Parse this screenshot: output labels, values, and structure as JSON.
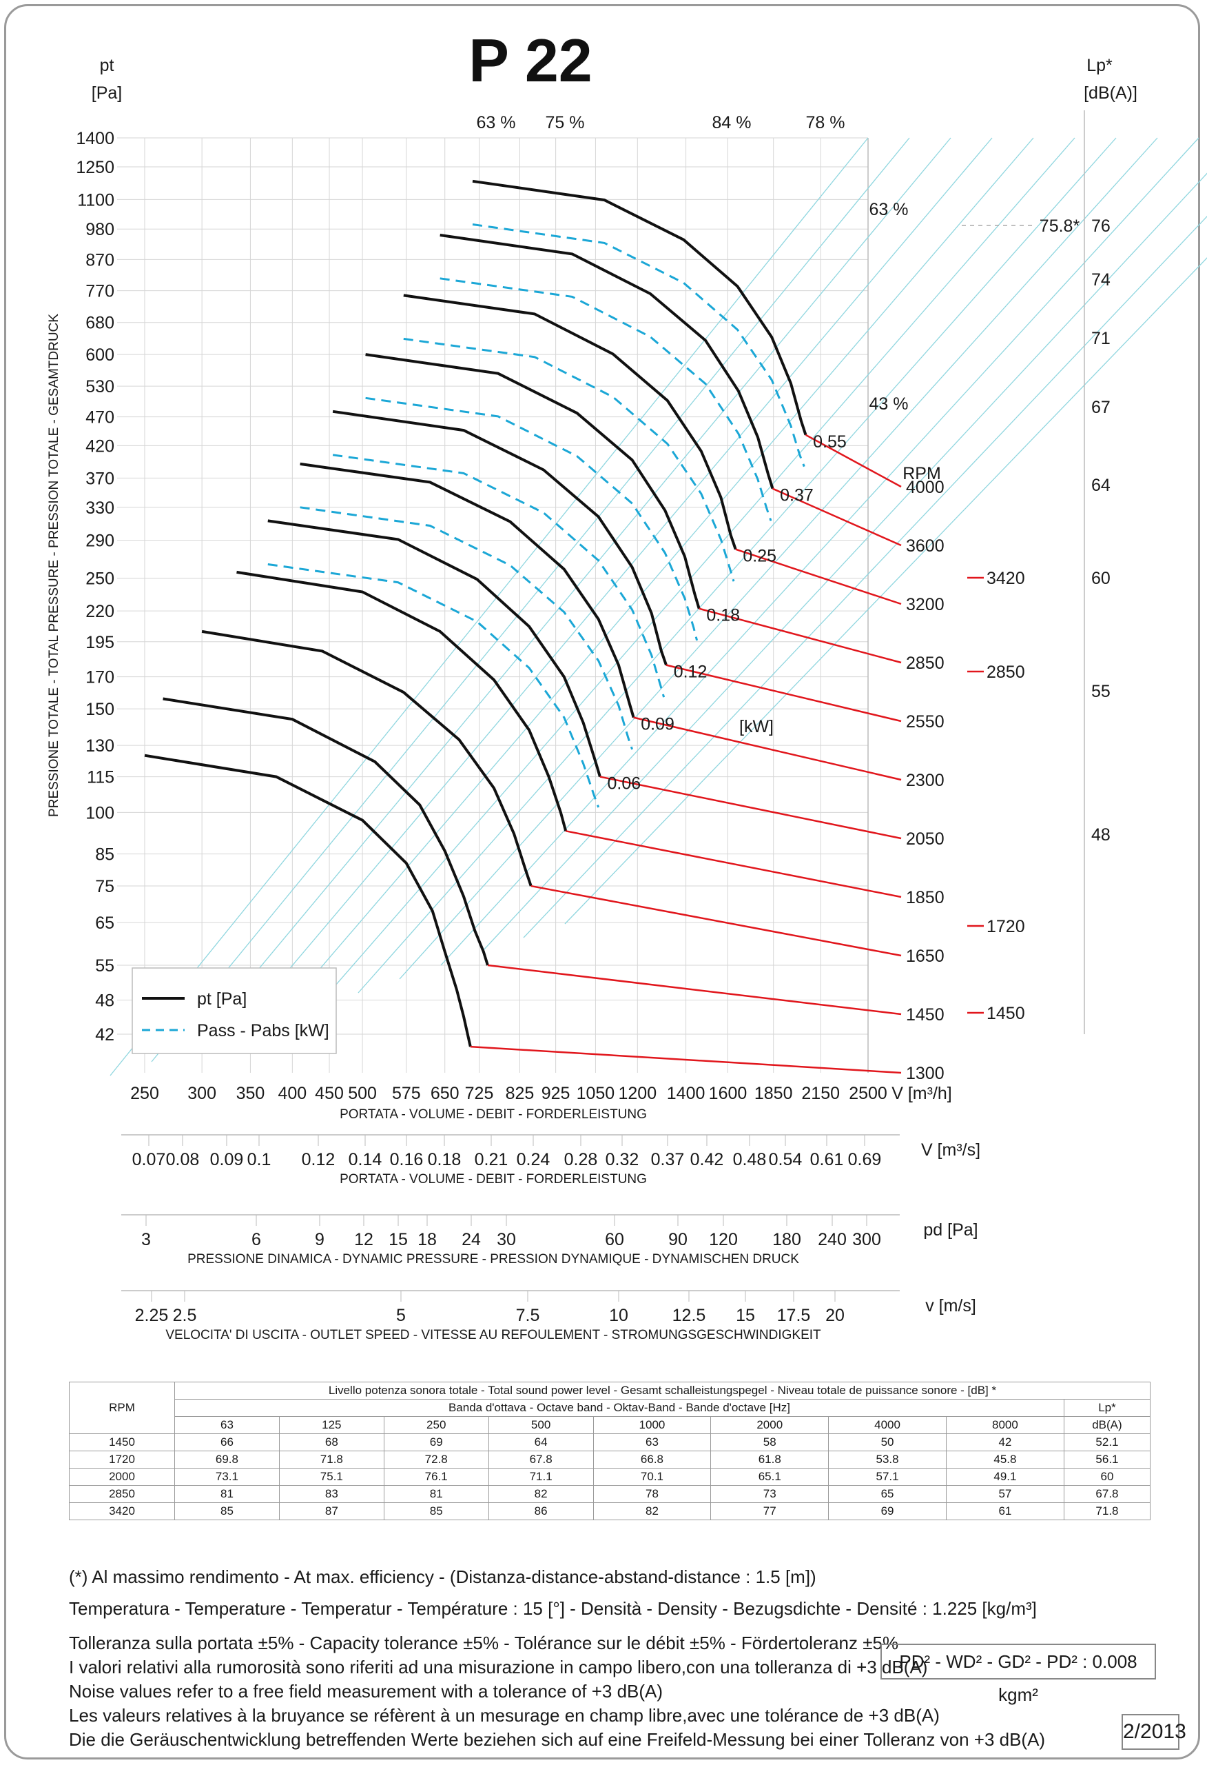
{
  "chart_data": {
    "type": "line",
    "title": "P 22",
    "y_axis": {
      "label": "pt\n[Pa]",
      "side_label": "PRESSIONE TOTALE - TOTAL PRESSURE - PRESSION TOTALE - GESAMTDRUCK",
      "ticks": [
        "1400",
        "1250",
        "1100",
        "980",
        "870",
        "770",
        "680",
        "600",
        "530",
        "470",
        "420",
        "370",
        "330",
        "290",
        "250",
        "220",
        "195",
        "170",
        "150",
        "130",
        "115",
        "100",
        "85",
        "75",
        "65",
        "55",
        "48",
        "42"
      ],
      "range": [
        42,
        1400
      ],
      "scale": "log"
    },
    "x_axis": {
      "label": "V [m³/h]",
      "caption": "PORTATA - VOLUME - DEBIT - FORDERLEISTUNG",
      "ticks": [
        "250",
        "300",
        "350",
        "400",
        "450",
        "500",
        "575",
        "650",
        "725",
        "825",
        "925",
        "1050",
        "1200",
        "1400",
        "1600",
        "1850",
        "2150",
        "2500"
      ],
      "range": [
        250,
        2500
      ],
      "scale": "log"
    },
    "sound_axis": {
      "label": "Lp*\n[dB(A)]",
      "ticks": [
        "76",
        "74",
        "71",
        "67",
        "64",
        "60",
        "55",
        "48"
      ],
      "marker": "75.8*"
    },
    "efficiency_labels": [
      "63 %",
      "75 %",
      "84 %",
      "78 %",
      "63 %",
      "43 %"
    ],
    "speed_header": "RPM",
    "power_unit": "[kW]",
    "legend": {
      "position": "bottom-left",
      "items": [
        "pt [Pa]",
        "Pass - Pabs [kW]"
      ]
    },
    "colors": {
      "pressure": "#111111",
      "power": "#1ba7d6",
      "rpm_line": "#e1161c",
      "grid": "#8fd6df"
    },
    "series": [
      {
        "rpm": "1300",
        "power": "",
        "pressure_points": [
          [
            250,
            125
          ],
          [
            380,
            115
          ],
          [
            500,
            97
          ],
          [
            575,
            82
          ],
          [
            625,
            68
          ],
          [
            650,
            58
          ],
          [
            675,
            50
          ],
          [
            690,
            45
          ],
          [
            705,
            40
          ]
        ],
        "power_points": []
      },
      {
        "rpm": "1450",
        "power": "",
        "pressure_points": [
          [
            265,
            156
          ],
          [
            400,
            144
          ],
          [
            520,
            122
          ],
          [
            600,
            103
          ],
          [
            650,
            86
          ],
          [
            690,
            72
          ],
          [
            715,
            63
          ],
          [
            735,
            58
          ],
          [
            745,
            55
          ]
        ],
        "power_points": []
      },
      {
        "rpm": "1650",
        "power": "",
        "pressure_points": [
          [
            300,
            203
          ],
          [
            440,
            188
          ],
          [
            570,
            160
          ],
          [
            680,
            133
          ],
          [
            760,
            110
          ],
          [
            810,
            92
          ],
          [
            840,
            80
          ],
          [
            855,
            75
          ]
        ],
        "power_points": []
      },
      {
        "rpm": "1850",
        "power": "",
        "pressure_points": [
          [
            335,
            256
          ],
          [
            500,
            237
          ],
          [
            640,
            203
          ],
          [
            760,
            168
          ],
          [
            850,
            138
          ],
          [
            905,
            115
          ],
          [
            940,
            100
          ],
          [
            955,
            93
          ]
        ],
        "power_points": []
      },
      {
        "rpm": "2050",
        "power": "0.06",
        "pressure_points": [
          [
            370,
            313
          ],
          [
            560,
            291
          ],
          [
            720,
            249
          ],
          [
            850,
            207
          ],
          [
            950,
            170
          ],
          [
            1010,
            142
          ],
          [
            1050,
            122
          ],
          [
            1065,
            115
          ]
        ],
        "power_points": [
          [
            370,
            264
          ],
          [
            560,
            246
          ],
          [
            720,
            211
          ],
          [
            850,
            176
          ],
          [
            950,
            145
          ],
          [
            1010,
            121
          ],
          [
            1045,
            107
          ],
          [
            1060,
            102
          ]
        ]
      },
      {
        "rpm": "2300",
        "power": "0.09",
        "pressure_points": [
          [
            410,
            391
          ],
          [
            620,
            364
          ],
          [
            800,
            312
          ],
          [
            950,
            259
          ],
          [
            1060,
            213
          ],
          [
            1130,
            178
          ],
          [
            1170,
            153
          ],
          [
            1185,
            145
          ]
        ],
        "power_points": [
          [
            410,
            330
          ],
          [
            620,
            307
          ],
          [
            800,
            263
          ],
          [
            950,
            219
          ],
          [
            1060,
            181
          ],
          [
            1130,
            152
          ],
          [
            1165,
            134
          ],
          [
            1180,
            128
          ]
        ]
      },
      {
        "rpm": "2550",
        "power": "0.12",
        "pressure_points": [
          [
            455,
            480
          ],
          [
            690,
            446
          ],
          [
            890,
            382
          ],
          [
            1060,
            318
          ],
          [
            1180,
            261
          ],
          [
            1255,
            218
          ],
          [
            1295,
            188
          ],
          [
            1315,
            178
          ]
        ],
        "power_points": [
          [
            455,
            405
          ],
          [
            690,
            377
          ],
          [
            890,
            323
          ],
          [
            1060,
            268
          ],
          [
            1180,
            221
          ],
          [
            1255,
            185
          ],
          [
            1290,
            165
          ],
          [
            1305,
            157
          ]
        ]
      },
      {
        "rpm": "2850",
        "power": "0.18",
        "pressure_points": [
          [
            505,
            600
          ],
          [
            770,
            557
          ],
          [
            990,
            477
          ],
          [
            1180,
            397
          ],
          [
            1310,
            326
          ],
          [
            1395,
            272
          ],
          [
            1440,
            235
          ],
          [
            1460,
            222
          ]
        ],
        "power_points": [
          [
            505,
            506
          ],
          [
            770,
            471
          ],
          [
            990,
            403
          ],
          [
            1180,
            335
          ],
          [
            1310,
            276
          ],
          [
            1395,
            231
          ],
          [
            1435,
            206
          ],
          [
            1450,
            196
          ]
        ]
      },
      {
        "rpm": "3200",
        "power": "0.25",
        "pressure_points": [
          [
            570,
            756
          ],
          [
            865,
            703
          ],
          [
            1110,
            601
          ],
          [
            1320,
            501
          ],
          [
            1470,
            411
          ],
          [
            1565,
            343
          ],
          [
            1615,
            296
          ],
          [
            1640,
            280
          ]
        ],
        "power_points": [
          [
            570,
            638
          ],
          [
            865,
            594
          ],
          [
            1110,
            508
          ],
          [
            1320,
            423
          ],
          [
            1470,
            348
          ],
          [
            1565,
            291
          ],
          [
            1610,
            260
          ],
          [
            1630,
            247
          ]
        ]
      },
      {
        "rpm": "3600",
        "power": "0.37",
        "pressure_points": [
          [
            640,
            957
          ],
          [
            975,
            889
          ],
          [
            1250,
            761
          ],
          [
            1490,
            634
          ],
          [
            1655,
            520
          ],
          [
            1760,
            434
          ],
          [
            1820,
            375
          ],
          [
            1845,
            355
          ]
        ],
        "power_points": [
          [
            640,
            808
          ],
          [
            975,
            752
          ],
          [
            1250,
            643
          ],
          [
            1490,
            535
          ],
          [
            1655,
            440
          ],
          [
            1760,
            368
          ],
          [
            1810,
            329
          ],
          [
            1835,
            313
          ]
        ]
      },
      {
        "rpm": "4000",
        "power": "0.55",
        "pressure_points": [
          [
            710,
            1182
          ],
          [
            1080,
            1098
          ],
          [
            1390,
            940
          ],
          [
            1650,
            783
          ],
          [
            1840,
            642
          ],
          [
            1955,
            536
          ],
          [
            2020,
            463
          ],
          [
            2050,
            438
          ]
        ],
        "power_points": [
          [
            710,
            998
          ],
          [
            1080,
            928
          ],
          [
            1390,
            794
          ],
          [
            1650,
            661
          ],
          [
            1840,
            543
          ],
          [
            1955,
            454
          ],
          [
            2010,
            406
          ],
          [
            2040,
            387
          ]
        ]
      }
    ],
    "rpm_markers": {
      "upper_rpm": [
        "3420",
        "2850",
        "1720",
        "1450"
      ],
      "power_points_extra": []
    },
    "secondary_axes": [
      {
        "label": "V  [m³/s]",
        "caption": "PORTATA - VOLUME - DEBIT - FORDERLEISTUNG",
        "ticks": [
          "0.07",
          "0.08",
          "0.09",
          "0.1",
          "0.12",
          "0.14",
          "0.16",
          "0.18",
          "0.21",
          "0.24",
          "0.28",
          "0.32",
          "0.37",
          "0.42",
          "0.48",
          "0.54",
          "0.61",
          "0.69"
        ]
      },
      {
        "label": "pd  [Pa]",
        "caption": "PRESSIONE DINAMICA - DYNAMIC PRESSURE - PRESSION DYNAMIQUE - DYNAMISCHEN DRUCK",
        "ticks": [
          "3",
          "6",
          "9",
          "12",
          "15",
          "18",
          "24",
          "30",
          "60",
          "90",
          "120",
          "180",
          "240",
          "300"
        ]
      },
      {
        "label": "v  [m/s]",
        "caption": "VELOCITA' DI USCITA - OUTLET SPEED - VITESSE AU REFOULEMENT - STROMUNGSGESCHWINDIGKEIT",
        "ticks": [
          "2.25",
          "2.5",
          "5",
          "7.5",
          "10",
          "12.5",
          "15",
          "17.5",
          "20"
        ]
      }
    ],
    "grid": true
  },
  "sound_table": {
    "title": "Livello potenza sonora totale - Total sound power level - Gesamt schalleistungspegel - Niveau totale de puissance sonore - [dB]   *",
    "band_header": "Banda d'ottava - Octave band - Oktav-Band - Bande d'octave [Hz]",
    "rpm_header": "RPM",
    "lp_header": "Lp*",
    "lp_unit": "dB(A)",
    "bands": [
      "63",
      "125",
      "250",
      "500",
      "1000",
      "2000",
      "4000",
      "8000"
    ],
    "rows": [
      {
        "rpm": "1450",
        "values": [
          "66",
          "68",
          "69",
          "64",
          "63",
          "58",
          "50",
          "42"
        ],
        "lp": "52.1"
      },
      {
        "rpm": "1720",
        "values": [
          "69.8",
          "71.8",
          "72.8",
          "67.8",
          "66.8",
          "61.8",
          "53.8",
          "45.8"
        ],
        "lp": "56.1"
      },
      {
        "rpm": "2000",
        "values": [
          "73.1",
          "75.1",
          "76.1",
          "71.1",
          "70.1",
          "65.1",
          "57.1",
          "49.1"
        ],
        "lp": "60"
      },
      {
        "rpm": "2850",
        "values": [
          "81",
          "83",
          "81",
          "82",
          "78",
          "73",
          "65",
          "57"
        ],
        "lp": "67.8"
      },
      {
        "rpm": "3420",
        "values": [
          "85",
          "87",
          "85",
          "86",
          "82",
          "77",
          "69",
          "61"
        ],
        "lp": "71.8"
      }
    ]
  },
  "notes": {
    "efficiency": "(*) Al massimo rendimento - At max. efficiency - (Distanza-distance-abstand-distance : 1.5 [m])",
    "temperature": "Temperatura - Temperature - Temperatur - Température : 15 [°]  -  Densità - Density - Bezugsdichte - Densité : 1.225 [kg/m³]",
    "tolerance": "Tolleranza sulla portata  ±5% - Capacity tolerance ±5% - Tolérance sur le débit ±5% - Fördertoleranz ±5%",
    "noise_it": "I valori relativi alla rumorosità sono riferiti ad una misurazione in campo libero,con una tolleranza di +3 dB(A)",
    "noise_en": "Noise values refer to a free field measurement with a tolerance of +3 dB(A)",
    "noise_fr": "Les valeurs relatives à la bruyance se réfèrent à un mesurage en champ libre,avec une tolérance de +3 dB(A)",
    "noise_de": "Die die Geräuschentwicklung betreffenden Werte beziehen sich auf eine Freifeld-Messung bei einer Tolleranz von +3 dB(A)",
    "inertia": "PD² -  WD² - GD² -  PD²  :  0.008 kgm²",
    "edition": "2/2013"
  }
}
